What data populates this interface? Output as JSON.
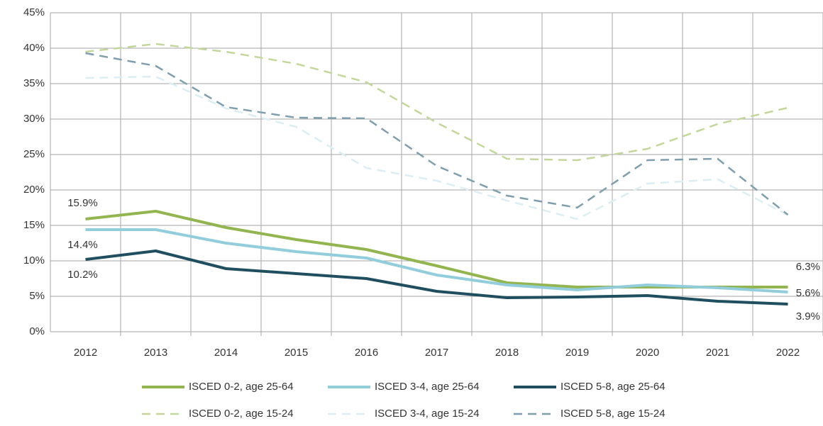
{
  "chart_data": {
    "type": "line",
    "categories": [
      "2012",
      "2013",
      "2014",
      "2015",
      "2016",
      "2017",
      "2018",
      "2019",
      "2020",
      "2021",
      "2022"
    ],
    "ylim": [
      0,
      45
    ],
    "yticks": [
      {
        "value": 0,
        "label": "0%"
      },
      {
        "value": 5,
        "label": "5%"
      },
      {
        "value": 10,
        "label": "10%"
      },
      {
        "value": 15,
        "label": "15%"
      },
      {
        "value": 20,
        "label": "20%"
      },
      {
        "value": 25,
        "label": "25%"
      },
      {
        "value": 30,
        "label": "30%"
      },
      {
        "value": 35,
        "label": "35%"
      },
      {
        "value": 40,
        "label": "40%"
      },
      {
        "value": 45,
        "label": "45%"
      }
    ],
    "grid": true,
    "legend": "bottom",
    "series": [
      {
        "name": "ISCED 0-2, age 25-64",
        "color": "#92b550",
        "dashed": false,
        "values": [
          15.9,
          17.0,
          14.7,
          13.0,
          11.6,
          9.3,
          6.9,
          6.3,
          6.3,
          6.3,
          6.3
        ],
        "value_labels": [
          "15.9%",
          null,
          null,
          null,
          null,
          null,
          null,
          null,
          null,
          null,
          "6.3%"
        ]
      },
      {
        "name": "ISCED 3-4, age 25-64",
        "color": "#92cddc",
        "dashed": false,
        "values": [
          14.4,
          14.4,
          12.5,
          11.3,
          10.4,
          8.0,
          6.6,
          5.9,
          6.6,
          6.2,
          5.6
        ],
        "value_labels": [
          "14.4%",
          null,
          null,
          null,
          null,
          null,
          null,
          null,
          null,
          null,
          "5.6%"
        ]
      },
      {
        "name": "ISCED 5-8, age 25-64",
        "color": "#1f4e5f",
        "dashed": false,
        "values": [
          10.2,
          11.4,
          8.9,
          8.2,
          7.5,
          5.7,
          4.8,
          4.9,
          5.1,
          4.3,
          3.9
        ],
        "value_labels": [
          "10.2%",
          null,
          null,
          null,
          null,
          null,
          null,
          null,
          null,
          null,
          "3.9%"
        ]
      },
      {
        "name": "ISCED 0-2, age 15-24",
        "color": "#c4d79b",
        "dashed": true,
        "values": [
          39.5,
          40.6,
          39.5,
          37.8,
          35.2,
          29.5,
          24.4,
          24.2,
          25.8,
          29.3,
          31.6
        ]
      },
      {
        "name": "ISCED 3-4, age 15-24",
        "color": "#daeef3",
        "dashed": true,
        "values": [
          35.8,
          36.0,
          31.5,
          28.9,
          23.1,
          21.3,
          18.5,
          15.9,
          20.9,
          21.5,
          16.5
        ]
      },
      {
        "name": "ISCED 5-8, age 15-24",
        "color": "#7f9fae",
        "dashed": true,
        "values": [
          39.3,
          37.5,
          31.7,
          30.2,
          30.1,
          23.4,
          19.2,
          17.5,
          24.2,
          24.4,
          16.5
        ]
      }
    ]
  }
}
